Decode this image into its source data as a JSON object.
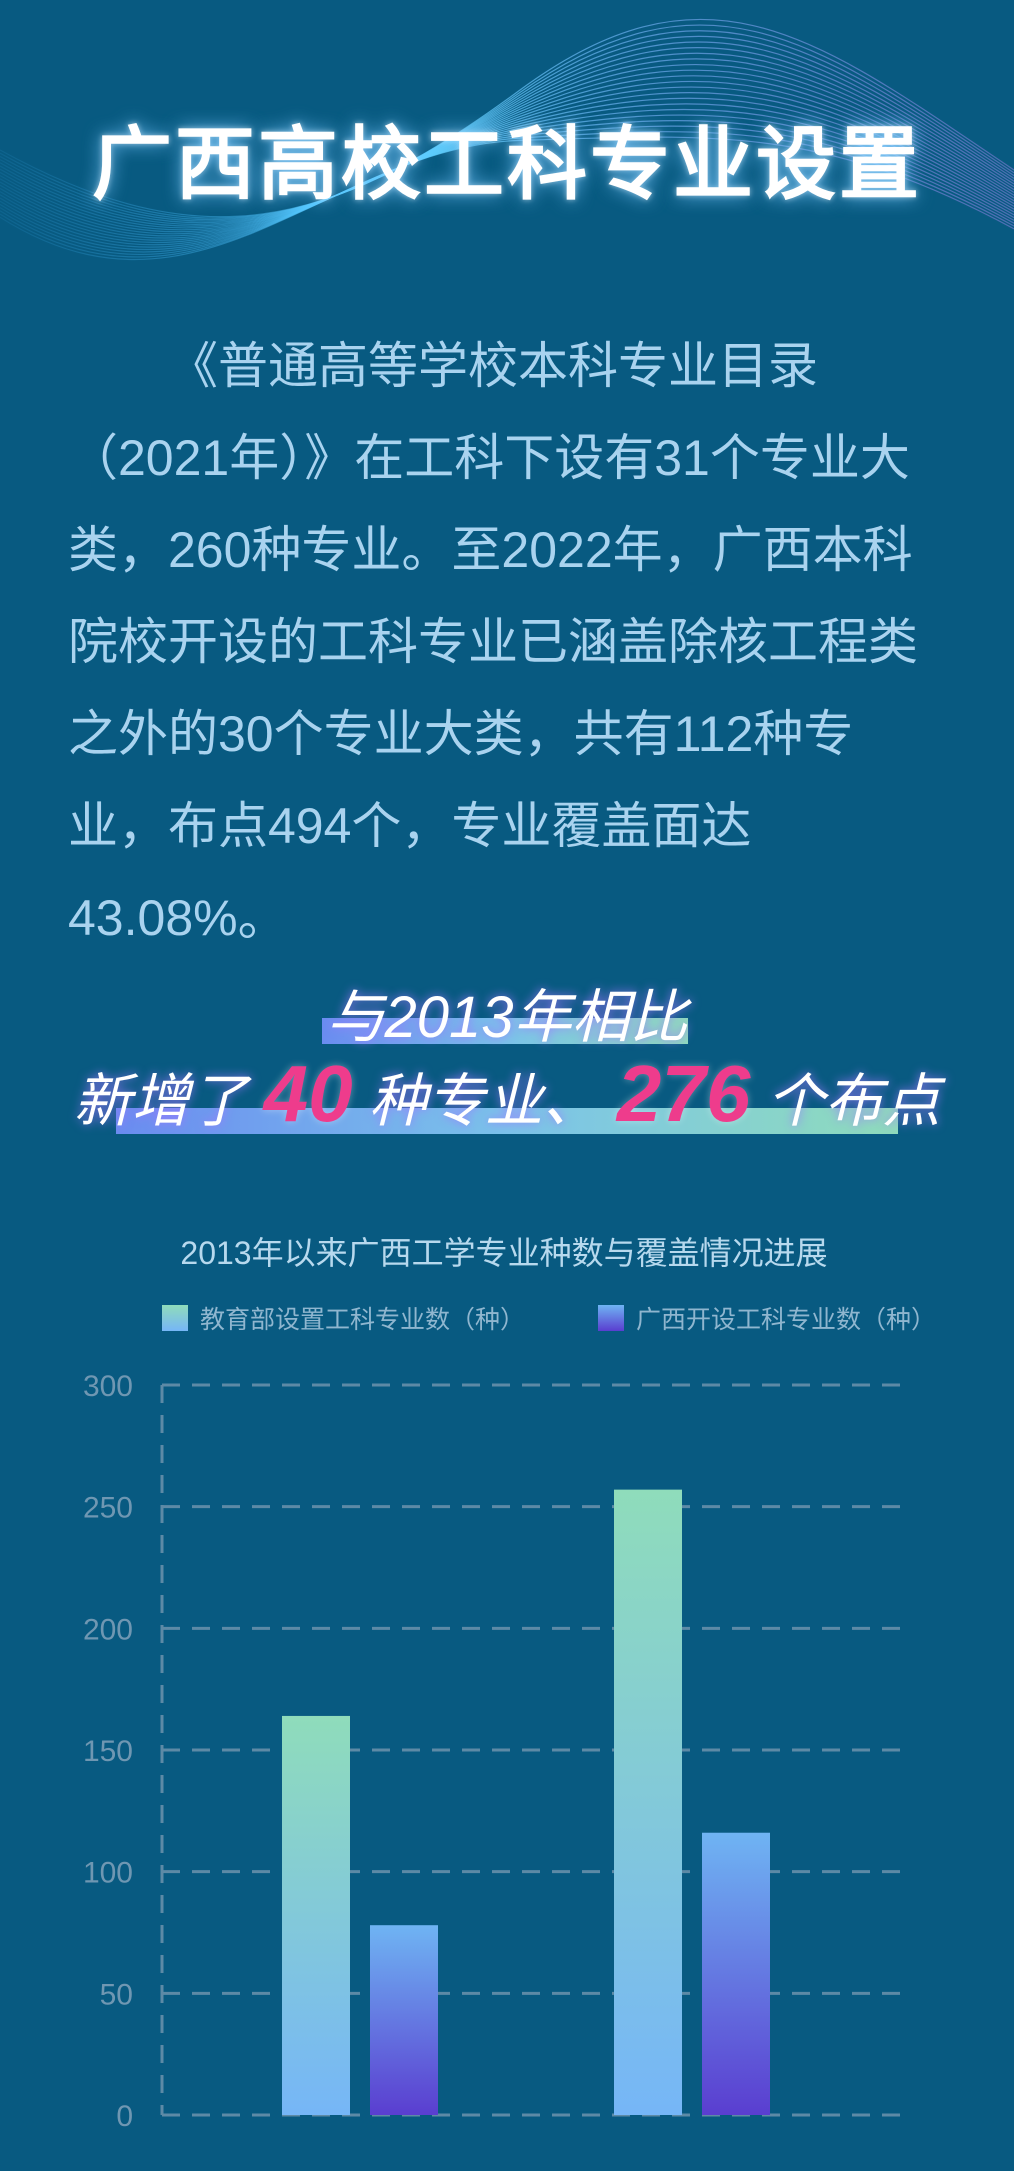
{
  "title": "广西高校工科专业设置",
  "intro": "《普通高等学校本科专业目录（2021年）》在工科下设有31个专业大类，260种专业。至2022年，广西本科院校开设的工科专业已涵盖除核工程类之外的30个专业大类，共有112种专业，布点494个，专业覆盖面达43.08%。",
  "highlight": {
    "line1": "与2013年相比",
    "prefix": "新增了",
    "num1": "40",
    "mid": " 种专业、",
    "num2": "276",
    "suffix": "个布点"
  },
  "colors": {
    "bg": "#085a81",
    "series1_top": "#8fdcbb",
    "series1_bottom": "#76b6f7",
    "series2_top": "#6fb4f3",
    "series2_bottom": "#5a3ed0",
    "accent": "#ee3c8c"
  },
  "chart_data": {
    "type": "bar",
    "title": "2013年以来广西工学专业种数与覆盖情况进展",
    "categories": [
      "",
      ""
    ],
    "series": [
      {
        "name": "教育部设置工科专业数（种）",
        "values": [
          164,
          257
        ]
      },
      {
        "name": "广西开设工科专业数（种）",
        "values": [
          78,
          116
        ]
      }
    ],
    "ylim": [
      0,
      300
    ],
    "yticks": [
      0,
      50,
      100,
      150,
      200,
      250,
      300
    ],
    "grid": true,
    "legend": "top"
  }
}
